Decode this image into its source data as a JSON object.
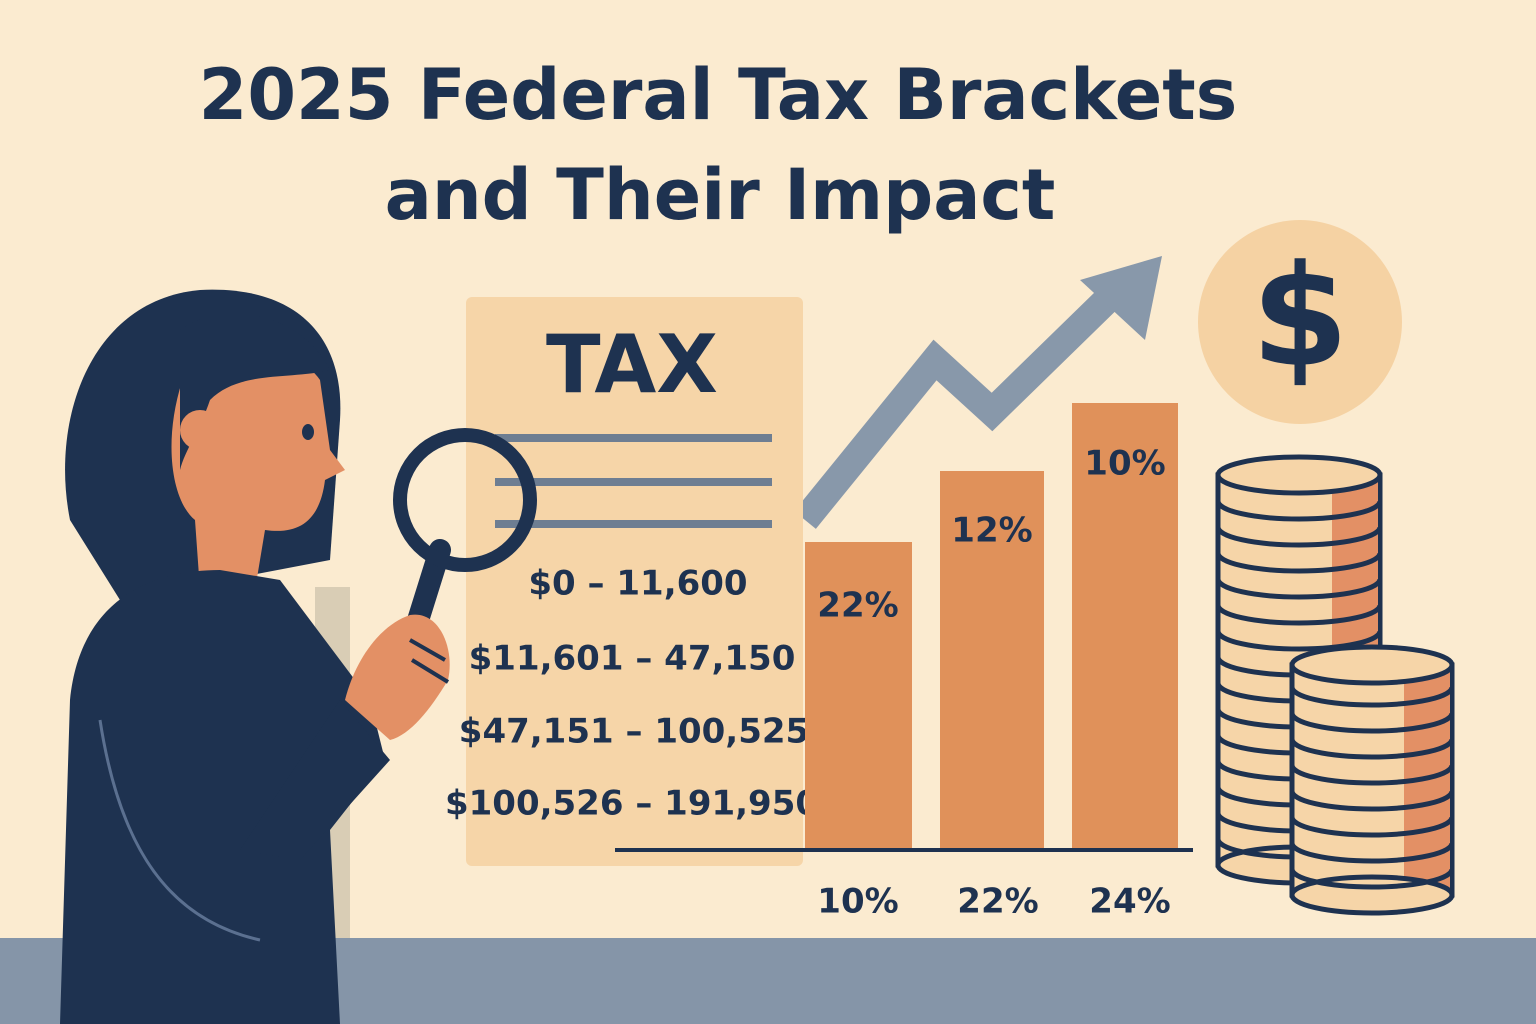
{
  "title": [
    "2025 Federal Tax Brackets",
    "and Their Impact"
  ],
  "document": {
    "heading": "TAX",
    "brackets": [
      "$0 – 11,600",
      "$11,601 – 47,150",
      "$47,151 – 100,525",
      "$100,526 – 191,950"
    ]
  },
  "bars": {
    "labels": [
      "22%",
      "12%",
      "10%"
    ],
    "axis_labels": [
      "10%",
      "22%",
      "24%"
    ]
  },
  "coin_icon": "$"
}
